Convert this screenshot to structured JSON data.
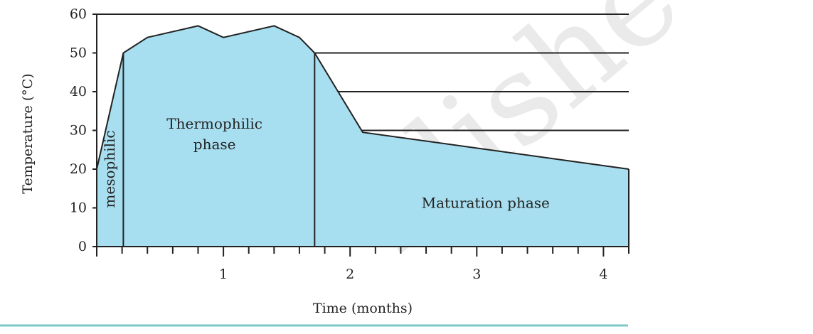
{
  "chart_data": {
    "type": "area",
    "title": "",
    "xlabel": "Time (months)",
    "ylabel": "Temperature (°C)",
    "xlim": [
      0,
      4.2
    ],
    "ylim": [
      0,
      60
    ],
    "x_ticks": [
      1,
      2,
      3,
      4
    ],
    "y_ticks": [
      0,
      10,
      20,
      30,
      40,
      50,
      60
    ],
    "y_gridlines": [
      30,
      40,
      50,
      60
    ],
    "fill_color": "#a8dff0",
    "outline_color": "#222222",
    "accent_rule_color": "#7cc8c8",
    "series": [
      {
        "x": [
          0,
          0.21,
          0.4,
          0.8,
          1.0,
          1.4,
          1.6,
          1.72,
          2.1,
          4.2
        ],
        "y": [
          20,
          50,
          54,
          57,
          54,
          57,
          54,
          50,
          29.5,
          20
        ]
      }
    ],
    "phase_boundaries": [
      0.21,
      1.72
    ],
    "phases": [
      {
        "name": "mesophilic",
        "lines": [
          "mesophilic"
        ],
        "x": 0.1,
        "y": 20,
        "rotate": -90
      },
      {
        "name": "thermophilic",
        "lines": [
          "Thermophilic",
          "phase"
        ],
        "x": 0.93,
        "y": 30.5,
        "rotate": 0
      },
      {
        "name": "maturation",
        "lines": [
          "Maturation phase"
        ],
        "x": 3.07,
        "y": 10,
        "rotate": 0
      }
    ]
  }
}
